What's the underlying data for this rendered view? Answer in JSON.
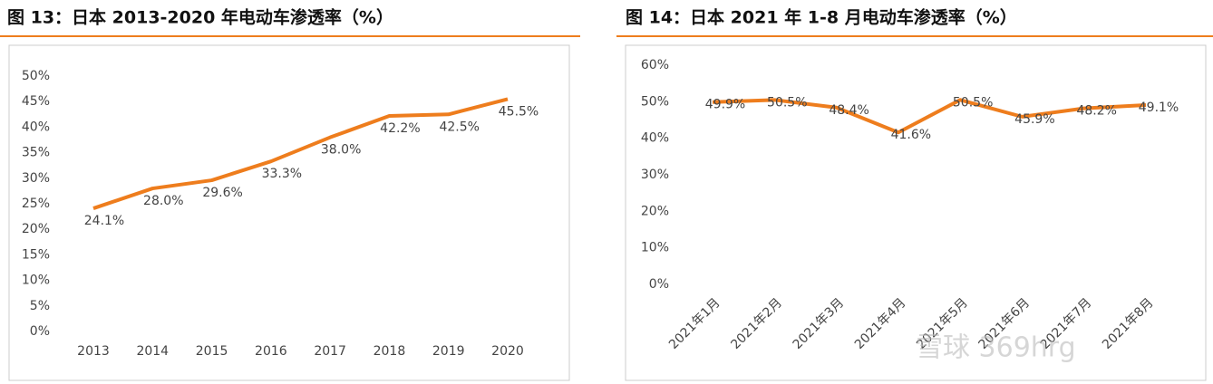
{
  "chart_data": [
    {
      "type": "line",
      "title": "图 13：日本 2013-2020 年电动车渗透率（%）",
      "categories": [
        "2013",
        "2014",
        "2015",
        "2016",
        "2017",
        "2018",
        "2019",
        "2020"
      ],
      "series": [
        {
          "color": "#ee7d1d",
          "values": [
            24.1,
            28.0,
            29.6,
            33.3,
            38.0,
            42.2,
            42.5,
            45.5
          ],
          "value_labels": [
            "24.1%",
            "28.0%",
            "29.6%",
            "33.3%",
            "38.0%",
            "42.2%",
            "42.5%",
            "45.5%"
          ]
        }
      ],
      "ylim": [
        0,
        50
      ],
      "yticks": [
        {
          "value": 0,
          "label": "0%"
        },
        {
          "value": 5,
          "label": "5%"
        },
        {
          "value": 10,
          "label": "10%"
        },
        {
          "value": 15,
          "label": "15%"
        },
        {
          "value": 20,
          "label": "20%"
        },
        {
          "value": 25,
          "label": "25%"
        },
        {
          "value": 30,
          "label": "30%"
        },
        {
          "value": 35,
          "label": "35%"
        },
        {
          "value": 40,
          "label": "40%"
        },
        {
          "value": 45,
          "label": "45%"
        },
        {
          "value": 50,
          "label": "50%"
        }
      ]
    },
    {
      "type": "line",
      "title": "图 14：日本 2021 年 1-8 月电动车渗透率（%）",
      "categories": [
        "2021年1月",
        "2021年2月",
        "2021年3月",
        "2021年4月",
        "2021年5月",
        "2021年6月",
        "2021年7月",
        "2021年8月"
      ],
      "series": [
        {
          "color": "#ee7d1d",
          "values": [
            49.9,
            50.5,
            48.4,
            41.6,
            50.5,
            45.9,
            48.2,
            49.1
          ],
          "value_labels": [
            "49.9%",
            "50.5%",
            "48.4%",
            "41.6%",
            "50.5%",
            "45.9%",
            "48.2%",
            "49.1%"
          ]
        }
      ],
      "ylim": [
        0,
        60
      ],
      "yticks": [
        {
          "value": 0,
          "label": "0%"
        },
        {
          "value": 10,
          "label": "10%"
        },
        {
          "value": 20,
          "label": "20%"
        },
        {
          "value": 30,
          "label": "30%"
        },
        {
          "value": 40,
          "label": "40%"
        },
        {
          "value": 50,
          "label": "50%"
        },
        {
          "value": 60,
          "label": "60%"
        }
      ]
    }
  ],
  "watermark": "雪球 369hrg"
}
